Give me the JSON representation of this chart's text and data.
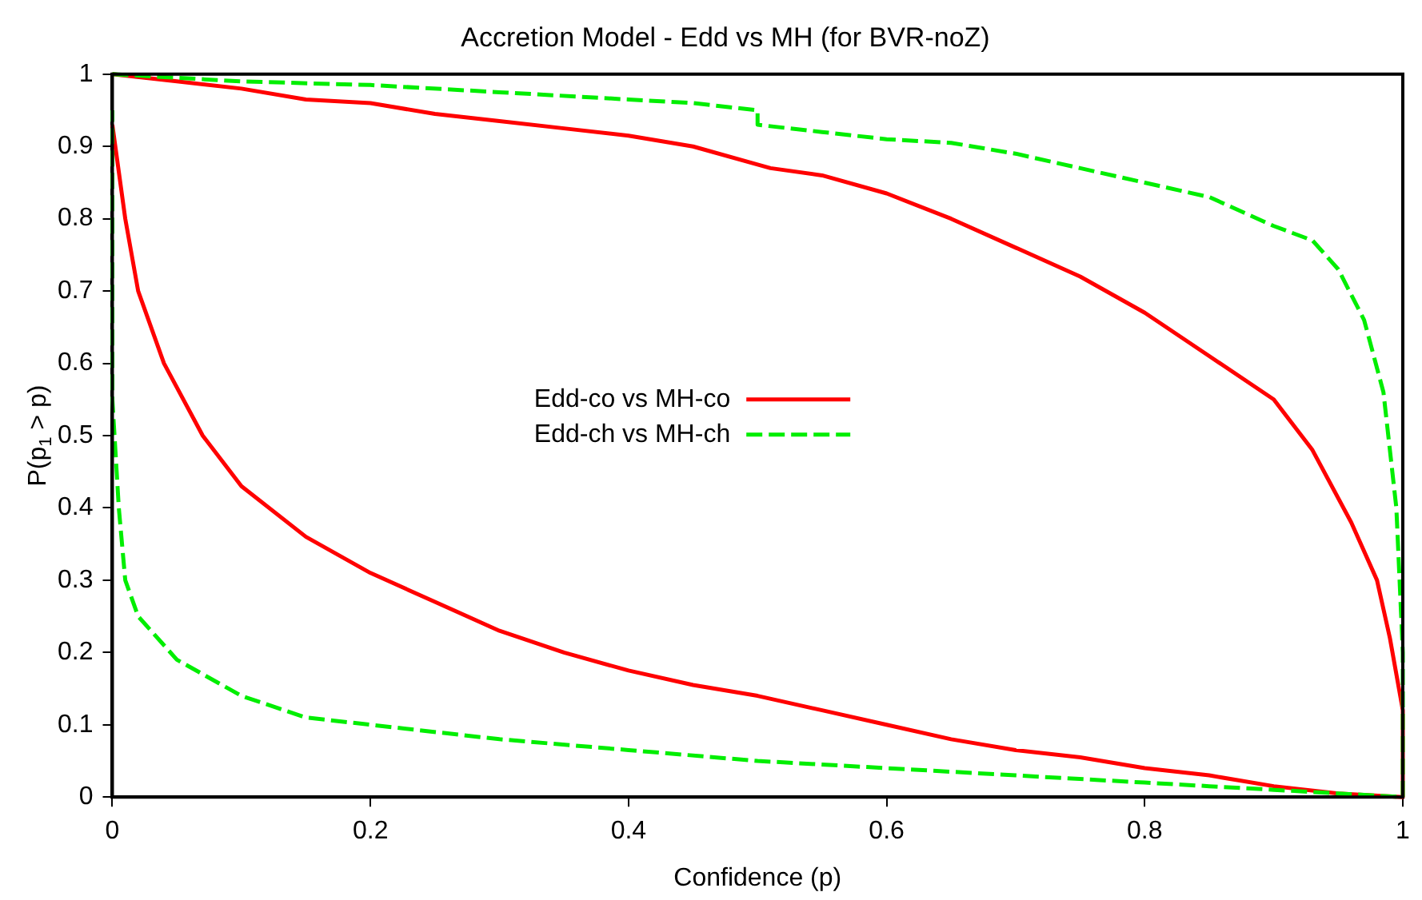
{
  "chart_data": {
    "type": "line",
    "title": "Accretion Model - Edd vs MH (for BVR-noZ)",
    "xlabel": "Confidence (p)",
    "ylabel": "P(p$_{1}$ > p)",
    "xlim": [
      0,
      1
    ],
    "ylim": [
      0,
      1
    ],
    "xticks": [
      0,
      0.2,
      0.4,
      0.6,
      0.8,
      1
    ],
    "yticks": [
      0,
      0.1,
      0.2,
      0.3,
      0.4,
      0.5,
      0.6,
      0.7,
      0.8,
      0.9,
      1
    ],
    "grid": false,
    "legend": "left",
    "marker": "none",
    "series": [
      {
        "name": "Edd-co vs MH-co",
        "color": "#ff0000",
        "line_style": "solid",
        "x": [
          0,
          0.05,
          0.1,
          0.15,
          0.2,
          0.25,
          0.3,
          0.35,
          0.4,
          0.45,
          0.5,
          0.51,
          0.55,
          0.6,
          0.65,
          0.7,
          0.75,
          0.8,
          0.85,
          0.9,
          0.93,
          0.96,
          0.98,
          0.99,
          1,
          1,
          0.95,
          0.9,
          0.85,
          0.8,
          0.75,
          0.7,
          0.65,
          0.6,
          0.55,
          0.5,
          0.45,
          0.4,
          0.35,
          0.3,
          0.25,
          0.2,
          0.15,
          0.1,
          0.07,
          0.04,
          0.02,
          0.01,
          0
        ],
        "values": [
          1,
          0.99,
          0.98,
          0.965,
          0.96,
          0.945,
          0.935,
          0.925,
          0.915,
          0.9,
          0.875,
          0.87,
          0.86,
          0.835,
          0.8,
          0.76,
          0.72,
          0.67,
          0.61,
          0.55,
          0.48,
          0.38,
          0.3,
          0.22,
          0.12,
          0,
          0.005,
          0.015,
          0.03,
          0.04,
          0.055,
          0.065,
          0.08,
          0.1,
          0.12,
          0.14,
          0.155,
          0.175,
          0.2,
          0.23,
          0.27,
          0.31,
          0.36,
          0.43,
          0.5,
          0.6,
          0.7,
          0.8,
          0.93
        ]
      },
      {
        "name": "Edd-ch vs MH-ch",
        "color": "#00ee00",
        "line_style": "dashed",
        "x": [
          0,
          0.1,
          0.2,
          0.3,
          0.4,
          0.45,
          0.5,
          0.5,
          0.55,
          0.6,
          0.65,
          0.7,
          0.75,
          0.8,
          0.85,
          0.9,
          0.93,
          0.95,
          0.97,
          0.985,
          0.995,
          1,
          1,
          0.95,
          0.9,
          0.85,
          0.8,
          0.7,
          0.6,
          0.5,
          0.4,
          0.3,
          0.2,
          0.15,
          0.1,
          0.05,
          0.02,
          0.01,
          0.005,
          0,
          0
        ],
        "values": [
          1,
          0.99,
          0.985,
          0.975,
          0.965,
          0.96,
          0.95,
          0.93,
          0.92,
          0.91,
          0.905,
          0.89,
          0.87,
          0.85,
          0.83,
          0.79,
          0.77,
          0.73,
          0.66,
          0.56,
          0.4,
          0.2,
          0,
          0.005,
          0.01,
          0.015,
          0.02,
          0.03,
          0.04,
          0.05,
          0.065,
          0.08,
          0.1,
          0.11,
          0.14,
          0.19,
          0.25,
          0.3,
          0.4,
          0.55,
          0.95
        ]
      }
    ]
  }
}
